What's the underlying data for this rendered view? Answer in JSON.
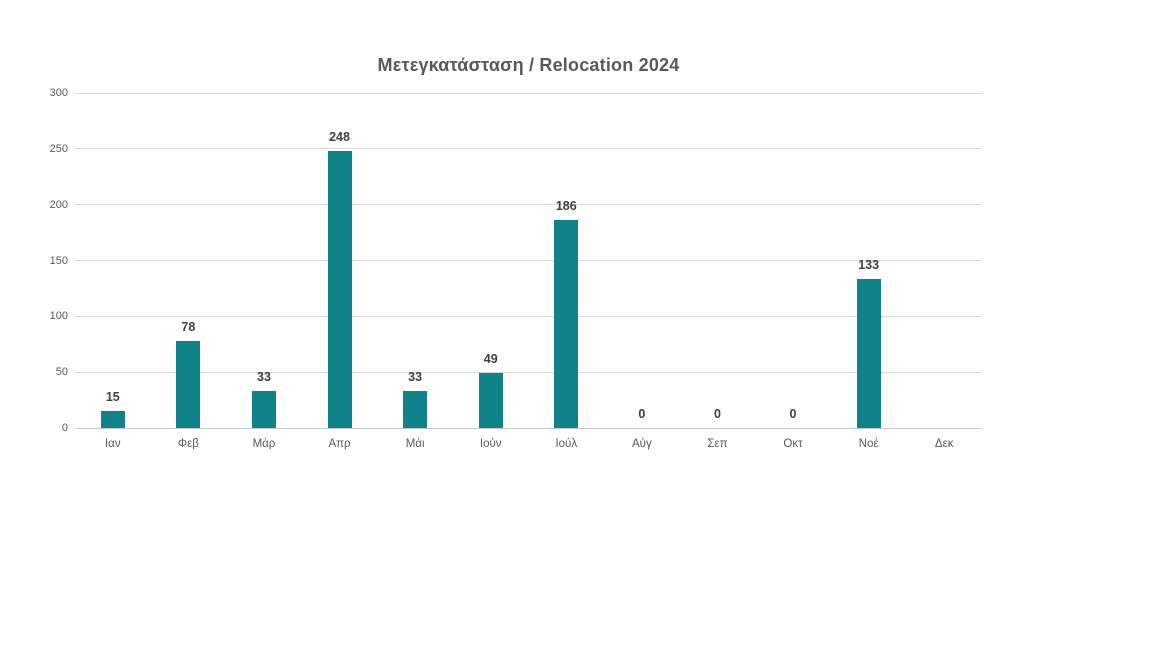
{
  "chart_data": {
    "type": "bar",
    "title": "Μετεγκατάσταση / Relocation 2024",
    "categories": [
      "Ιαν",
      "Φεβ",
      "Μάρ",
      "Απρ",
      "Μάι",
      "Ιούν",
      "Ιούλ",
      "Αύγ",
      "Σεπ",
      "Οκτ",
      "Νοέ",
      "Δεκ"
    ],
    "values": [
      15,
      78,
      33,
      248,
      33,
      49,
      186,
      0,
      0,
      0,
      133,
      null
    ],
    "y_ticks": [
      0,
      50,
      100,
      150,
      200,
      250,
      300
    ],
    "ylim": [
      0,
      300
    ],
    "xlabel": "",
    "ylabel": "",
    "grid": true,
    "legend": "none",
    "data_labels": true,
    "colors": {
      "bar": "#0f8389",
      "title_text": "#595959",
      "axis_text": "#595959",
      "value_label_text": "#3f3f3f",
      "gridline": "#d9d9d9",
      "axis_line": "#c9c9c9",
      "background": "#ffffff"
    }
  }
}
